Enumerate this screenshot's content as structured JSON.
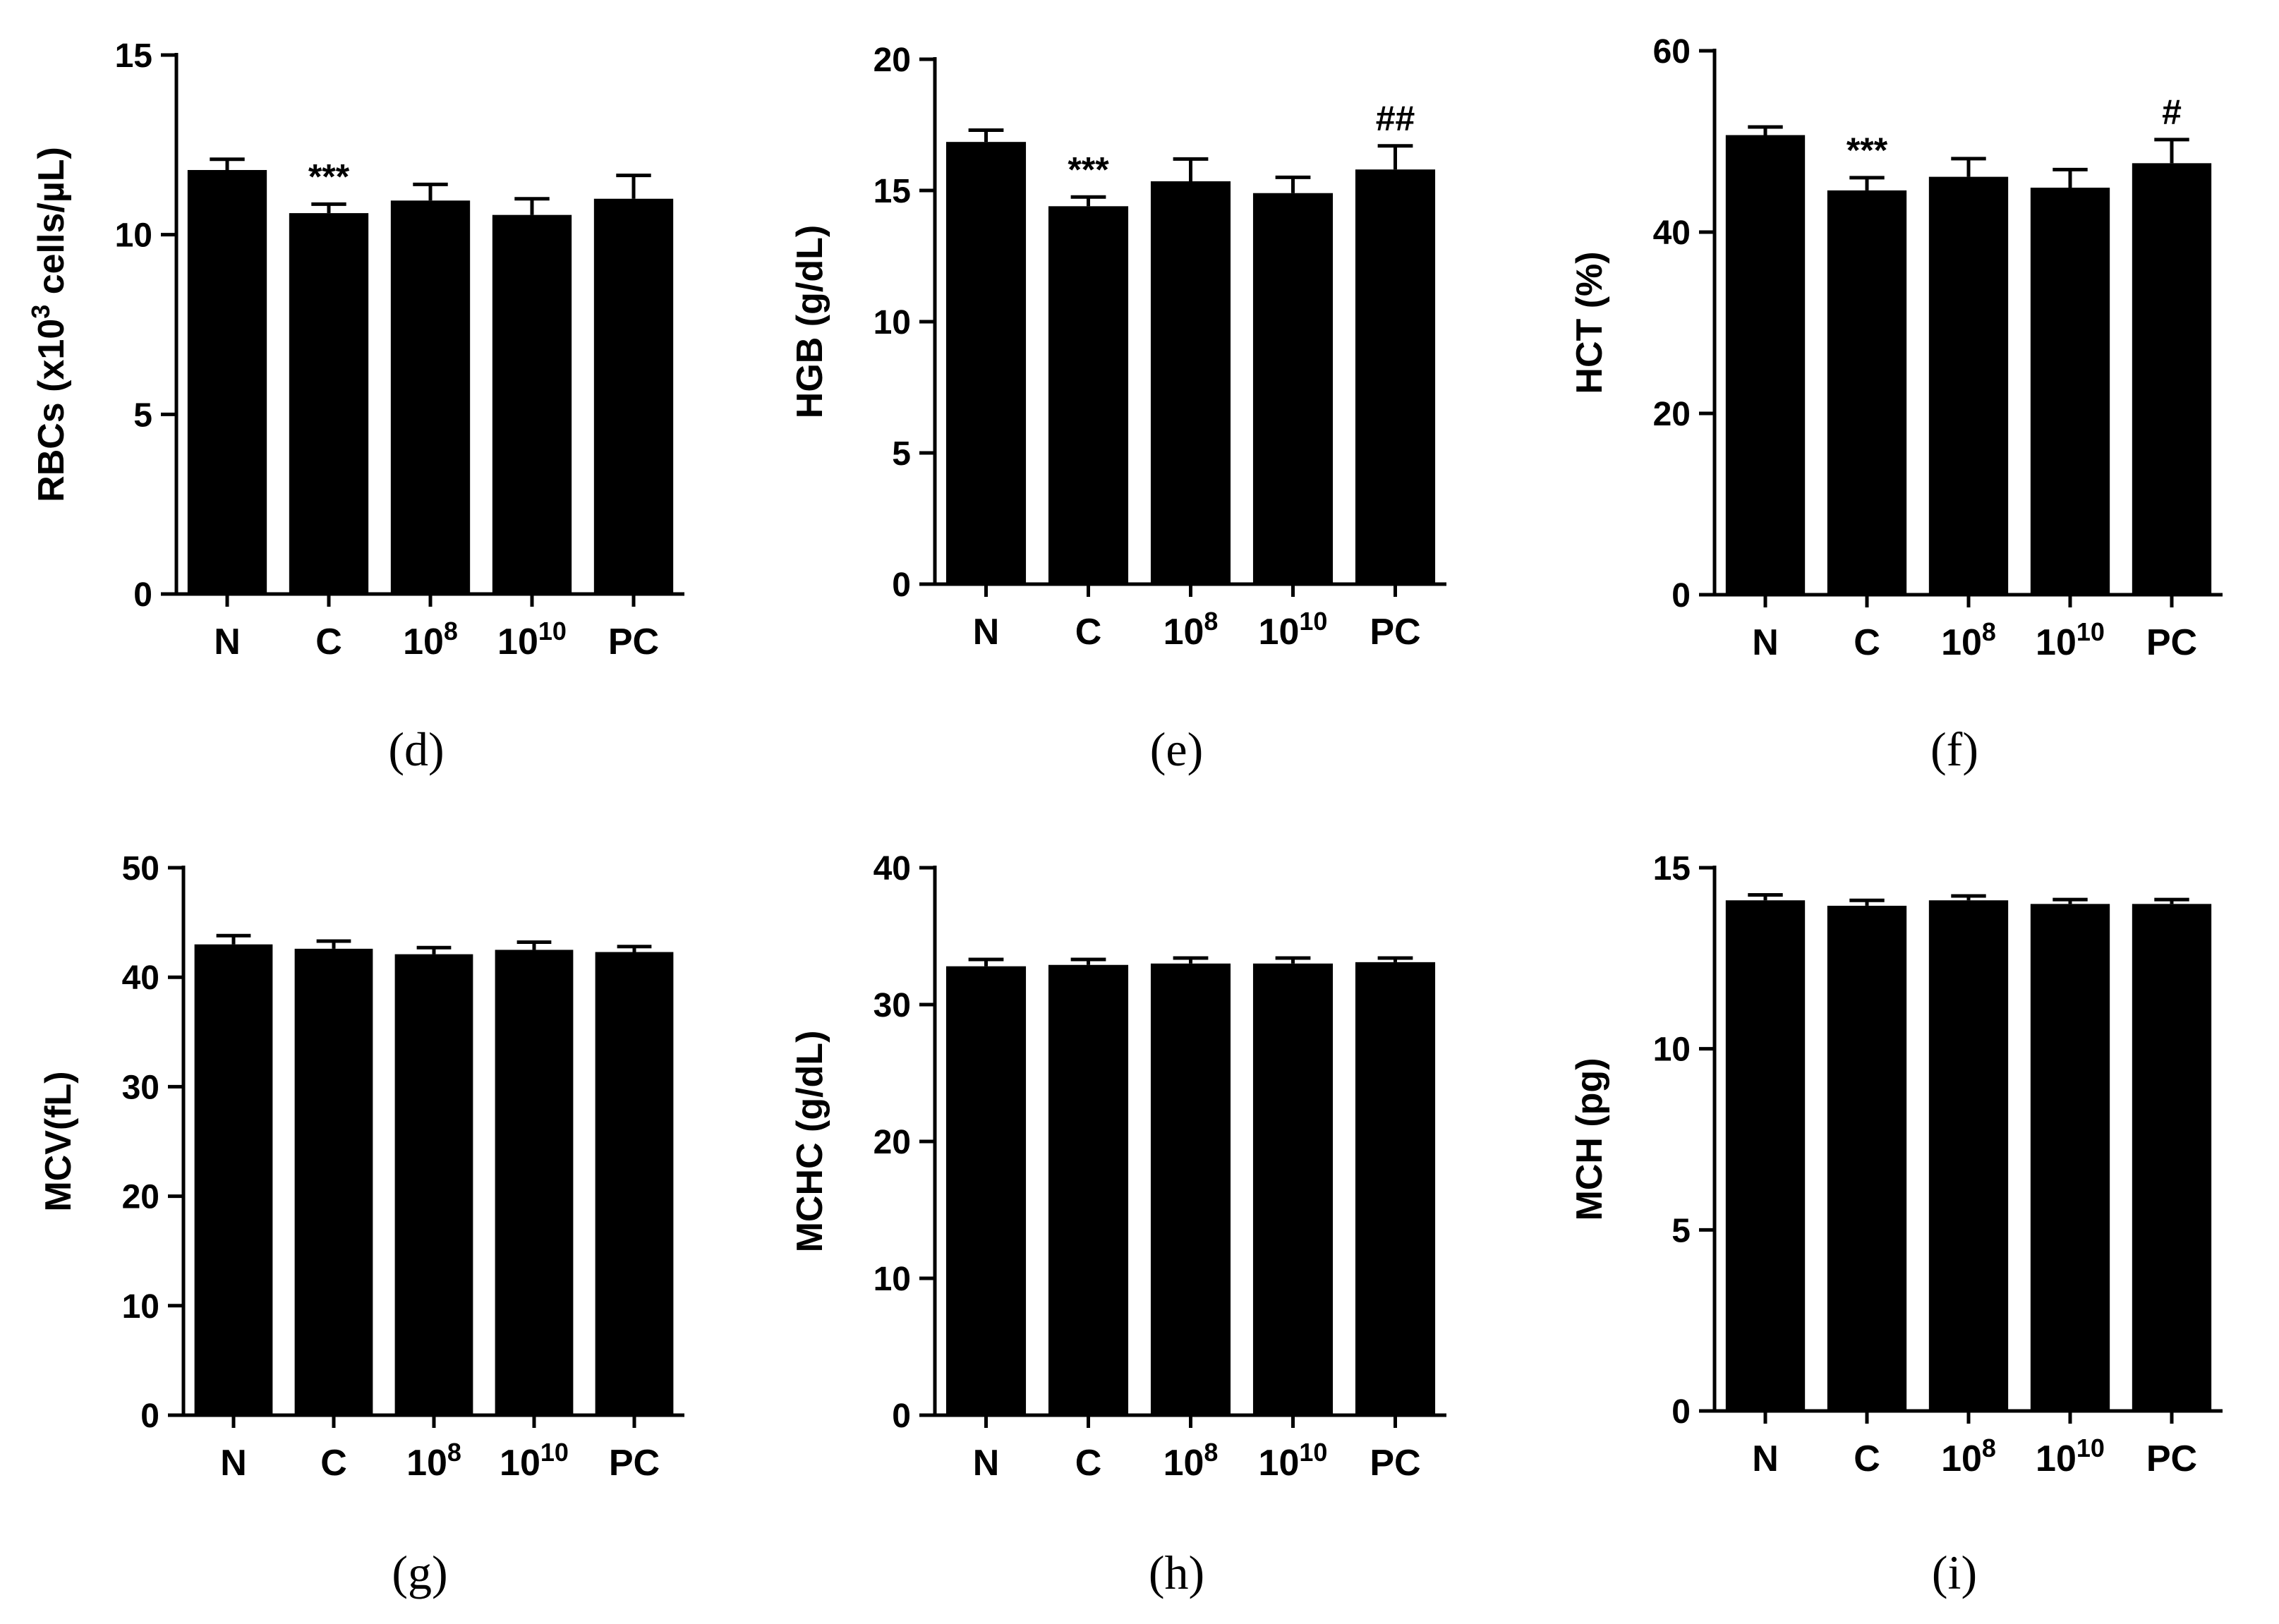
{
  "chart_data": [
    {
      "type": "bar",
      "panel_label": "(d)",
      "ylabel": "RBCs  (x10",
      "ylabel_sup": "3",
      "ylabel_after": " cells/µL)",
      "ylim": [
        0,
        15
      ],
      "yticks": [
        0,
        5,
        10,
        15
      ],
      "categories": [
        "N",
        "C",
        "10",
        "10",
        "PC"
      ],
      "category_sup": [
        "",
        "",
        "8",
        "10",
        ""
      ],
      "values": [
        11.8,
        10.6,
        10.95,
        10.55,
        11.0
      ],
      "errors": [
        0.3,
        0.25,
        0.45,
        0.45,
        0.65
      ],
      "annotations": [
        "",
        "***",
        "",
        "",
        ""
      ]
    },
    {
      "type": "bar",
      "panel_label": "(e)",
      "ylabel": "HGB (g/dL)",
      "ylabel_sup": "",
      "ylabel_after": "",
      "ylim": [
        0,
        20
      ],
      "yticks": [
        0,
        5,
        10,
        15,
        20
      ],
      "categories": [
        "N",
        "C",
        "10",
        "10",
        "PC"
      ],
      "category_sup": [
        "",
        "",
        "8",
        "10",
        ""
      ],
      "values": [
        16.85,
        14.4,
        15.35,
        14.9,
        15.8
      ],
      "errors": [
        0.45,
        0.35,
        0.85,
        0.6,
        0.9
      ],
      "annotations": [
        "",
        "***",
        "",
        "",
        "##"
      ]
    },
    {
      "type": "bar",
      "panel_label": "(f)",
      "ylabel": "HCT (%)",
      "ylabel_sup": "",
      "ylabel_after": "",
      "ylim": [
        0,
        60
      ],
      "yticks": [
        0,
        20,
        40,
        60
      ],
      "categories": [
        "N",
        "C",
        "10",
        "10",
        "PC"
      ],
      "category_sup": [
        "",
        "",
        "8",
        "10",
        ""
      ],
      "values": [
        50.7,
        44.6,
        46.1,
        44.9,
        47.6
      ],
      "errors": [
        0.9,
        1.4,
        2.0,
        2.0,
        2.6
      ],
      "annotations": [
        "",
        "***",
        "",
        "",
        "#"
      ]
    },
    {
      "type": "bar",
      "panel_label": "(g)",
      "ylabel": "MCV(fL)",
      "ylabel_sup": "",
      "ylabel_after": "",
      "ylim": [
        0,
        50
      ],
      "yticks": [
        0,
        10,
        20,
        30,
        40,
        50
      ],
      "categories": [
        "N",
        "C",
        "10",
        "10",
        "PC"
      ],
      "category_sup": [
        "",
        "",
        "8",
        "10",
        ""
      ],
      "values": [
        43.0,
        42.6,
        42.1,
        42.5,
        42.3
      ],
      "errors": [
        0.8,
        0.7,
        0.6,
        0.7,
        0.5
      ],
      "annotations": [
        "",
        "",
        "",
        "",
        ""
      ]
    },
    {
      "type": "bar",
      "panel_label": "(h)",
      "ylabel": "MCHC (g/dL)",
      "ylabel_sup": "",
      "ylabel_after": "",
      "ylim": [
        0,
        40
      ],
      "yticks": [
        0,
        10,
        20,
        30,
        40
      ],
      "categories": [
        "N",
        "C",
        "10",
        "10",
        "PC"
      ],
      "category_sup": [
        "",
        "",
        "8",
        "10",
        ""
      ],
      "values": [
        32.8,
        32.9,
        33.0,
        33.0,
        33.1
      ],
      "errors": [
        0.5,
        0.4,
        0.4,
        0.4,
        0.3
      ],
      "annotations": [
        "",
        "",
        "",
        "",
        ""
      ]
    },
    {
      "type": "bar",
      "panel_label": "(i)",
      "ylabel": "MCH  (pg)",
      "ylabel_sup": "",
      "ylabel_after": "",
      "ylim": [
        0,
        15
      ],
      "yticks": [
        0,
        5,
        10,
        15
      ],
      "categories": [
        "N",
        "C",
        "10",
        "10",
        "PC"
      ],
      "category_sup": [
        "",
        "",
        "8",
        "10",
        ""
      ],
      "values": [
        14.1,
        13.95,
        14.1,
        14.0,
        14.0
      ],
      "errors": [
        0.15,
        0.15,
        0.12,
        0.12,
        0.12
      ],
      "annotations": [
        "",
        "",
        "",
        "",
        ""
      ]
    }
  ]
}
